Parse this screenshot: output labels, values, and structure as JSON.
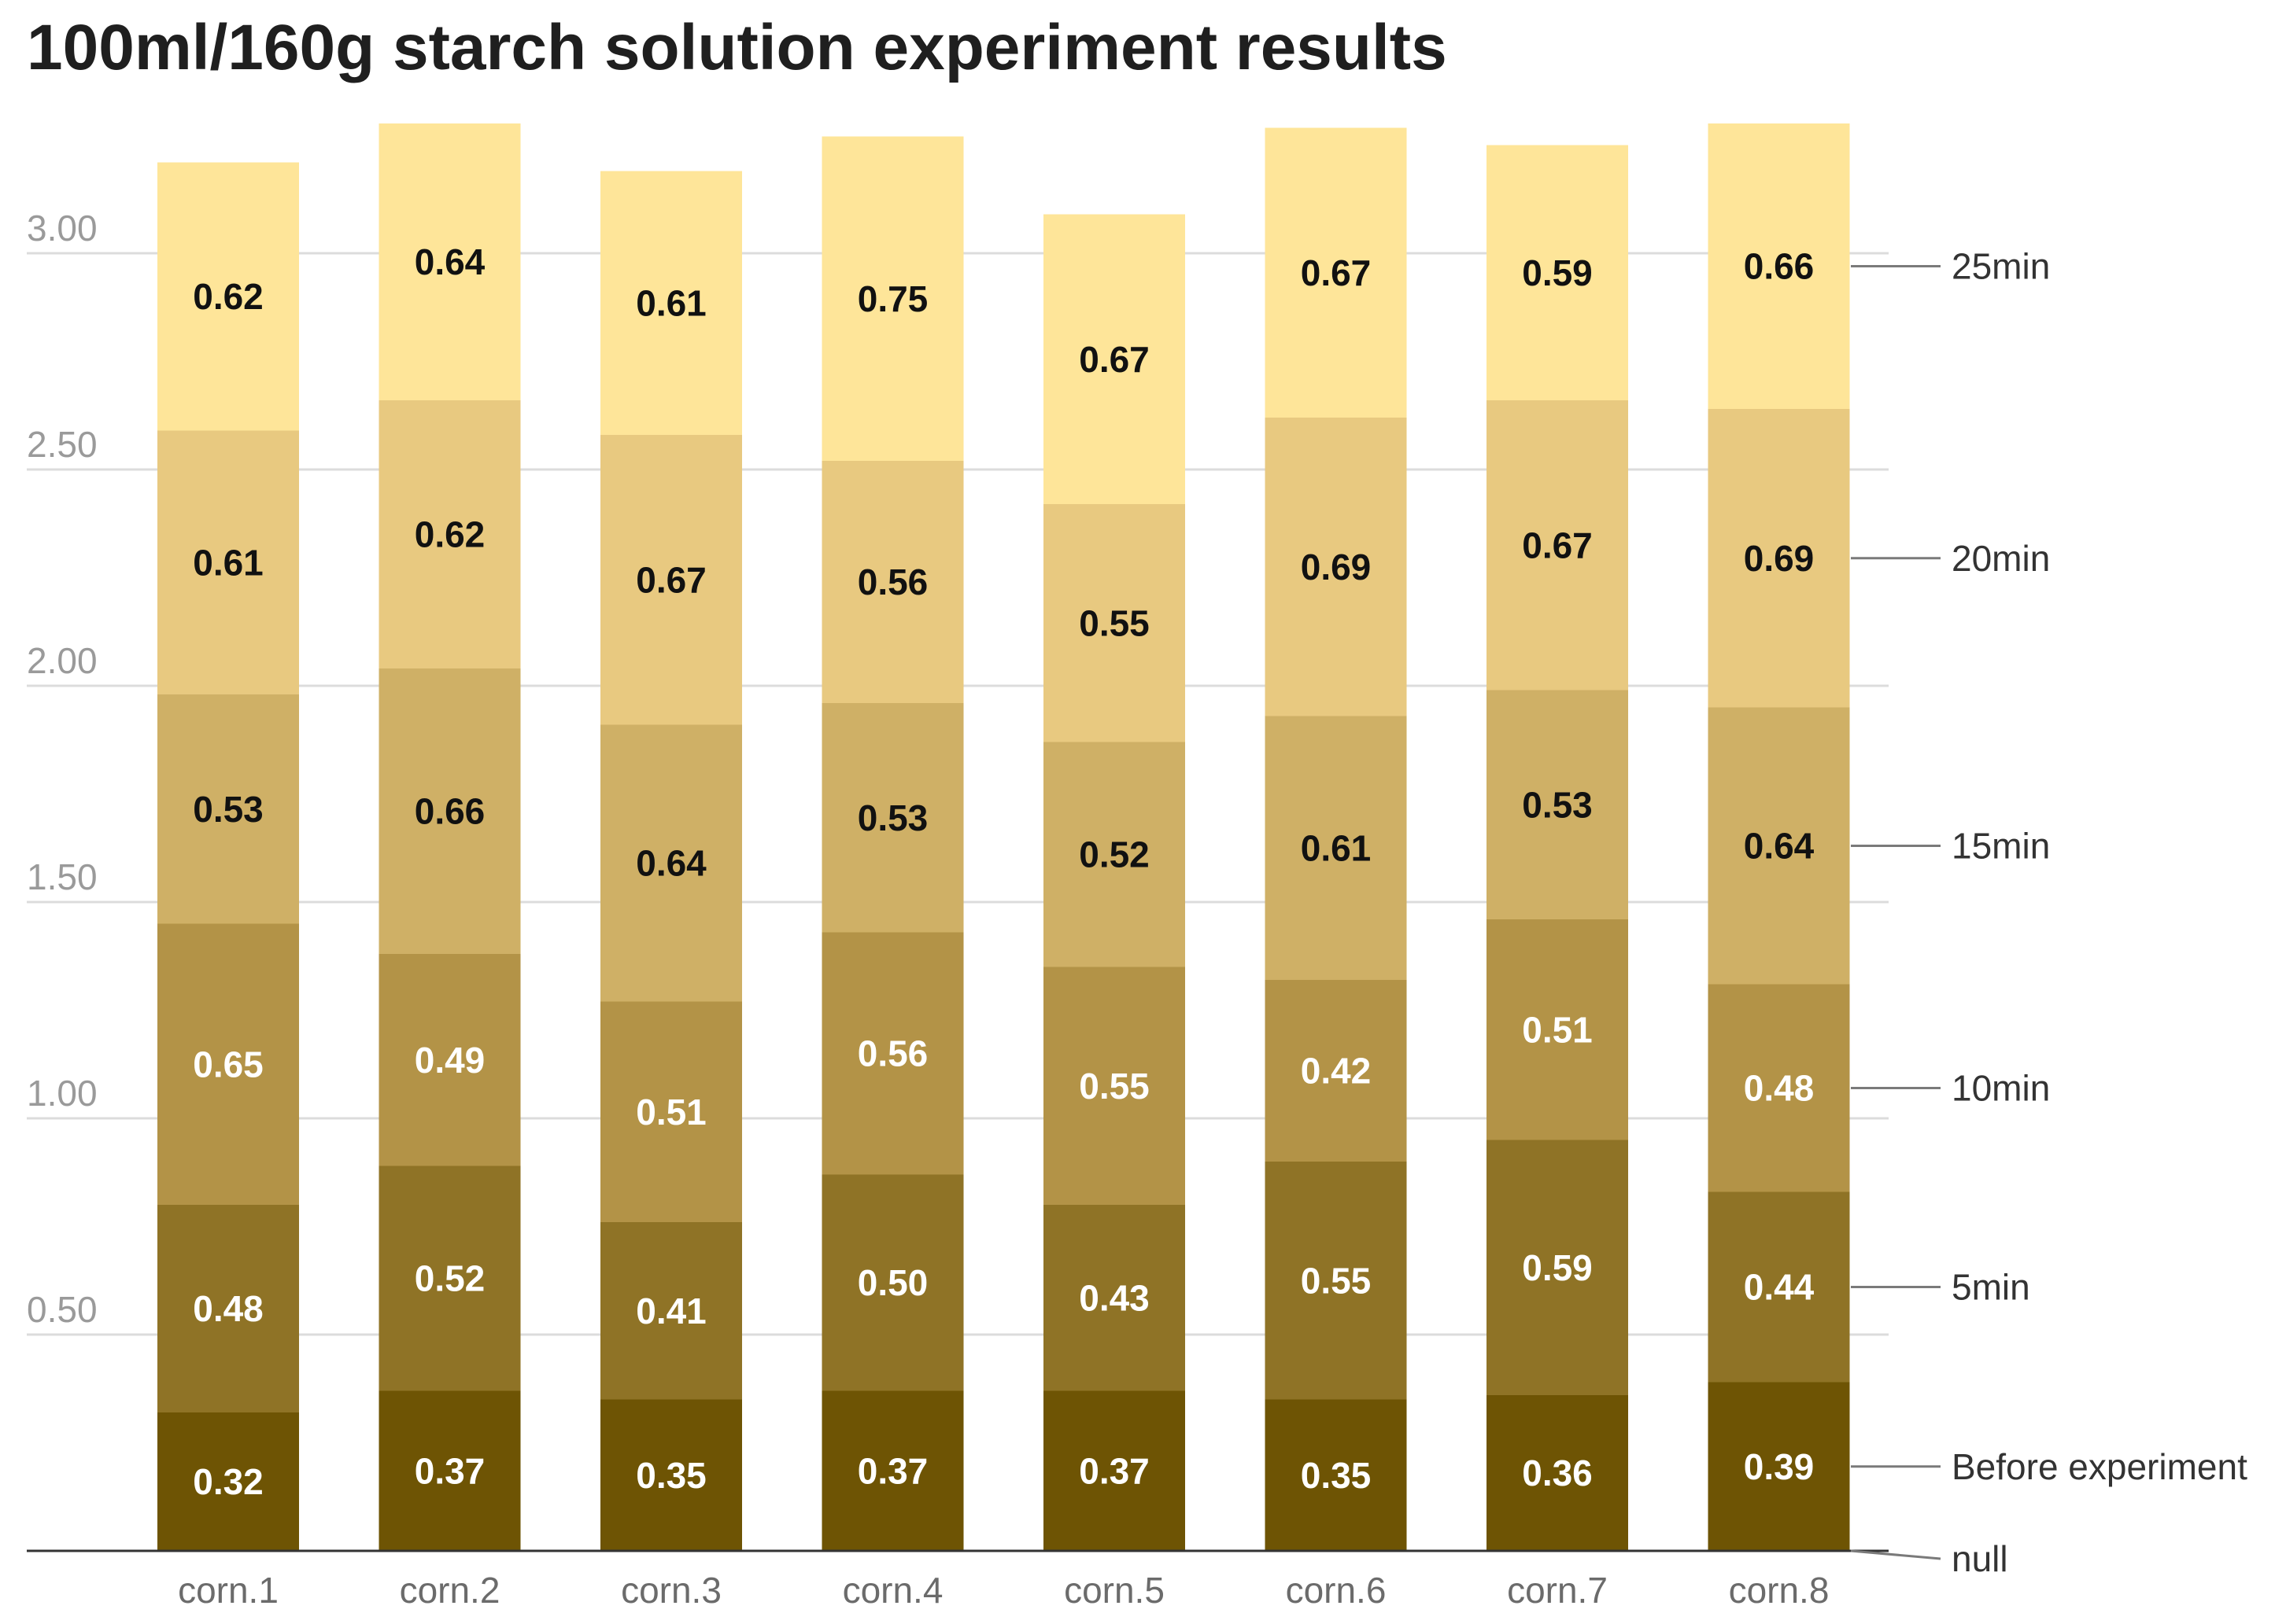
{
  "chart_data": {
    "type": "bar",
    "stacked": true,
    "title": "100ml/160g starch solution experiment results",
    "xlabel": "",
    "ylabel": "",
    "ylim": [
      0,
      3.3
    ],
    "yticks": [
      "0.50",
      "1.00",
      "1.50",
      "2.00",
      "2.50",
      "3.00"
    ],
    "ytick_values": [
      0.5,
      1.0,
      1.5,
      2.0,
      2.5,
      3.0
    ],
    "grid": true,
    "legend": "right (inline labels)",
    "categories": [
      "corn.1",
      "corn.2",
      "corn.3",
      "corn.4",
      "corn.5",
      "corn.6",
      "corn.7",
      "corn.8"
    ],
    "series": [
      {
        "name": "Before experiment",
        "color": "#6e5404",
        "text_color": "#ffffff",
        "values": [
          0.32,
          0.37,
          0.35,
          0.37,
          0.37,
          0.35,
          0.36,
          0.39
        ]
      },
      {
        "name": "5min",
        "color": "#8f7326",
        "text_color": "#ffffff",
        "values": [
          0.48,
          0.52,
          0.41,
          0.5,
          0.43,
          0.55,
          0.59,
          0.44
        ]
      },
      {
        "name": "10min",
        "color": "#b39347",
        "text_color": "#ffffff",
        "values": [
          0.65,
          0.49,
          0.51,
          0.56,
          0.55,
          0.42,
          0.51,
          0.48
        ]
      },
      {
        "name": "15min",
        "color": "#cfb066",
        "text_color": "#111111",
        "values": [
          0.53,
          0.66,
          0.64,
          0.53,
          0.52,
          0.61,
          0.53,
          0.64
        ]
      },
      {
        "name": "20min",
        "color": "#e8c980",
        "text_color": "#111111",
        "values": [
          0.61,
          0.62,
          0.67,
          0.56,
          0.55,
          0.69,
          0.67,
          0.69
        ]
      },
      {
        "name": "25min",
        "color": "#fee599",
        "text_color": "#111111",
        "values": [
          0.62,
          0.64,
          0.61,
          0.75,
          0.67,
          0.67,
          0.59,
          0.66
        ]
      }
    ],
    "value_labels": [
      [
        "0.32",
        "0.37",
        "0.35",
        "0.37",
        "0.37",
        "0.35",
        "0.36",
        "0.39"
      ],
      [
        "0.48",
        "0.52",
        "0.41",
        "0.50",
        "0.43",
        "0.55",
        "0.59",
        "0.44"
      ],
      [
        "0.65",
        "0.49",
        "0.51",
        "0.56",
        "0.55",
        "0.42",
        "0.51",
        "0.48"
      ],
      [
        "0.53",
        "0.66",
        "0.64",
        "0.53",
        "0.52",
        "0.61",
        "0.53",
        "0.64"
      ],
      [
        "0.61",
        "0.62",
        "0.67",
        "0.56",
        "0.55",
        "0.69",
        "0.67",
        "0.69"
      ],
      [
        "0.62",
        "0.64",
        "0.61",
        "0.75",
        "0.67",
        "0.67",
        "0.59",
        "0.66"
      ]
    ],
    "null_label": "null",
    "colors": {
      "grid": "#dcdcdc",
      "axis": "#333333",
      "connector": "#7a7a7a"
    }
  }
}
